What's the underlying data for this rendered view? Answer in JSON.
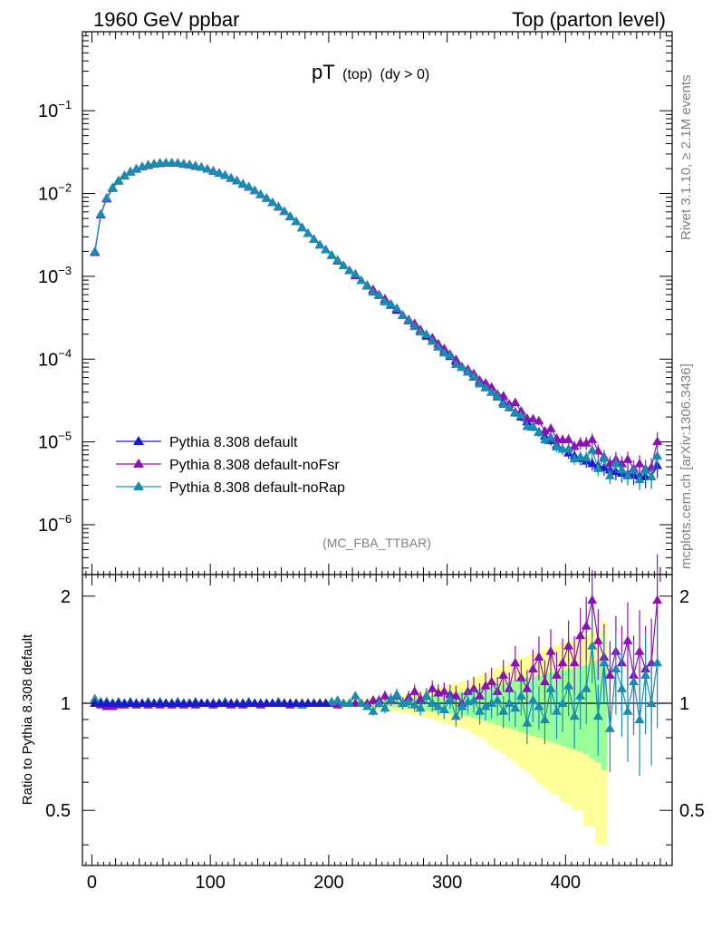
{
  "header": {
    "left": "1960 GeV ppbar",
    "right": "Top (parton level)"
  },
  "side_labels": {
    "rivet": "Rivet 3.1.10, ≥ 2.1M events",
    "mcplots": "mcplots.cern.ch [arXiv:1306.3436]"
  },
  "plot_title": {
    "main": "pT",
    "sub1": "(top)",
    "sub2": "(dy > 0)"
  },
  "analysis_label": "(MC_FBA_TTBAR)",
  "ratio_ylabel": "Ratio to Pythia 8.308 default",
  "colors": {
    "default": "#1a1acc",
    "noFsr": "#8a12b4",
    "noRap": "#1a8caf",
    "band_yellow": "#ffff99",
    "band_green": "#99ff99"
  },
  "chart_data": [
    {
      "type": "line",
      "title": "pT (top) (dy > 0)",
      "xlabel": "",
      "ylabel": "",
      "xlim": [
        -8,
        490
      ],
      "yscale": "log",
      "ylim": [
        2.5e-07,
        0.9
      ],
      "yticks": [
        {
          "value": 1e-06,
          "base": "10",
          "exp": "−6"
        },
        {
          "value": 1e-05,
          "base": "10",
          "exp": "−5"
        },
        {
          "value": 0.0001,
          "base": "10",
          "exp": "−4"
        },
        {
          "value": 0.001,
          "base": "10",
          "exp": "−3"
        },
        {
          "value": 0.01,
          "base": "10",
          "exp": "−2"
        },
        {
          "value": 0.1,
          "base": "10",
          "exp": "−1"
        }
      ],
      "legend": {
        "position": "bottom-left",
        "entries": [
          "Pythia 8.308 default",
          "Pythia 8.308 default-noFsr",
          "Pythia 8.308 default-noRap"
        ]
      },
      "series": [
        {
          "name": "Pythia 8.308 default",
          "color": "#1a1acc",
          "x_start": 2.5,
          "x_step": 5,
          "values": [
            0.00195,
            0.0056,
            0.0088,
            0.0118,
            0.0143,
            0.0165,
            0.0183,
            0.0199,
            0.0211,
            0.0221,
            0.0228,
            0.0233,
            0.0235,
            0.0235,
            0.0233,
            0.0229,
            0.0223,
            0.0216,
            0.0208,
            0.0198,
            0.0188,
            0.0177,
            0.0166,
            0.0154,
            0.0143,
            0.0131,
            0.012,
            0.0109,
            0.0098,
            0.0088,
            0.0078,
            0.0069,
            0.0061,
            0.0053,
            0.0046,
            0.0039,
            0.0033,
            0.0028,
            0.0024,
            0.0021,
            0.0018,
            0.00155,
            0.00135,
            0.00118,
            0.00102,
            0.00089,
            0.00078,
            0.00068,
            0.00059,
            0.00051,
            0.00045,
            0.00039,
            0.00034,
            0.00029,
            0.00025,
            0.00022,
            0.00019,
            0.000165,
            0.000143,
            0.000124,
            0.000108,
            9.4e-05,
            8.1e-05,
            7e-05,
            6.1e-05,
            5.3e-05,
            4.6e-05,
            4e-05,
            3.5e-05,
            3e-05,
            2.6e-05,
            2.3e-05,
            2e-05,
            1.75e-05,
            1.52e-05,
            1.33e-05,
            1.18e-05,
            1.04e-05,
            9.2e-06,
            8.2e-06,
            7.4e-06,
            6.8e-06,
            6.3e-06,
            5.9e-06,
            5.5e-06,
            5.2e-06,
            4.9e-06,
            4.6e-06,
            4.4e-06,
            4.2e-06,
            4.1e-06,
            4e-06,
            3.9e-06,
            3.8e-06,
            3.8e-06,
            5.2e-06
          ]
        }
      ]
    },
    {
      "type": "line",
      "title": "",
      "xlabel": "",
      "ylabel": "Ratio to Pythia 8.308 default",
      "xlim": [
        -8,
        490
      ],
      "ylim": [
        0.35,
        2.3
      ],
      "xticks": [
        0,
        100,
        200,
        300,
        400
      ],
      "yticks": [
        0.5,
        1,
        2
      ],
      "series": [
        {
          "name": "Pythia 8.308 default-noFsr",
          "color": "#8a12b4",
          "x_start": 2.5,
          "x_step": 5,
          "values": [
            1.0,
            0.99,
            0.98,
            0.98,
            0.99,
            0.99,
            1.0,
            0.99,
            1.0,
            0.99,
            1.0,
            0.99,
            1.0,
            0.99,
            1.0,
            0.99,
            1.0,
            0.99,
            1.0,
            1.0,
            0.99,
            1.0,
            1.0,
            0.99,
            1.0,
            0.99,
            1.0,
            1.0,
            0.99,
            1.0,
            1.0,
            1.0,
            1.0,
            0.99,
            1.0,
            0.99,
            1.0,
            1.0,
            1.0,
            1.0,
            1.0,
            0.99,
            1.0,
            1.0,
            1.0,
            1.0,
            1.0,
            1.02,
            1.02,
            1.05,
            1.02,
            1.05,
            1.0,
            1.04,
            1.08,
            1.03,
            1.05,
            1.1,
            1.07,
            1.08,
            1.06,
            1.05,
            1.0,
            1.08,
            1.1,
            1.05,
            1.12,
            1.15,
            1.08,
            1.2,
            1.1,
            1.3,
            1.18,
            1.1,
            1.25,
            1.35,
            1.15,
            1.4,
            1.2,
            1.3,
            1.45,
            1.3,
            1.55,
            1.65,
            1.95,
            1.5,
            1.35,
            1.2,
            1.4,
            1.3,
            1.5,
            1.2,
            1.4,
            1.25,
            1.3,
            1.95
          ]
        },
        {
          "name": "Pythia 8.308 default-noRap",
          "color": "#1a8caf",
          "x_start": 2.5,
          "x_step": 5,
          "values": [
            1.03,
            1.01,
            1.01,
            1.0,
            1.01,
            1.0,
            1.01,
            1.0,
            1.0,
            1.01,
            1.0,
            1.01,
            1.0,
            1.0,
            1.01,
            1.0,
            1.0,
            1.01,
            1.0,
            1.0,
            1.0,
            1.0,
            1.01,
            1.0,
            1.0,
            1.0,
            1.01,
            1.0,
            1.0,
            1.0,
            1.0,
            1.01,
            1.0,
            1.0,
            1.0,
            0.99,
            1.0,
            1.0,
            1.0,
            1.0,
            1.01,
            1.02,
            1.0,
            1.0,
            1.05,
            1.0,
            0.98,
            0.95,
            1.0,
            0.97,
            1.03,
            1.06,
            1.0,
            1.01,
            0.99,
            0.97,
            1.05,
            1.0,
            0.98,
            0.96,
            1.03,
            0.92,
            0.98,
            1.01,
            1.02,
            0.95,
            0.98,
            1.0,
            1.02,
            0.95,
            1.0,
            0.97,
            1.05,
            0.88,
            1.02,
            0.98,
            0.9,
            1.1,
            0.95,
            1.0,
            1.12,
            0.92,
            1.05,
            1.1,
            1.45,
            0.92,
            1.3,
            0.85,
            1.25,
            1.1,
            0.95,
            1.15,
            0.9,
            1.2,
            1.0,
            1.3
          ]
        }
      ],
      "bands": [
        {
          "name": "yellow",
          "color": "#ffff99",
          "x_start": 0,
          "x_step": 5,
          "lower": [
            0.98,
            0.985,
            0.985,
            0.985,
            0.985,
            0.985,
            0.985,
            0.985,
            0.985,
            0.985,
            0.985,
            0.985,
            0.985,
            0.985,
            0.985,
            0.985,
            0.985,
            0.985,
            0.985,
            0.985,
            0.985,
            0.985,
            0.985,
            0.985,
            0.985,
            0.985,
            0.985,
            0.985,
            0.985,
            0.985,
            0.985,
            0.985,
            0.985,
            0.985,
            0.985,
            0.985,
            0.985,
            0.985,
            0.985,
            0.985,
            0.985,
            0.983,
            0.98,
            0.978,
            0.975,
            0.972,
            0.97,
            0.965,
            0.96,
            0.955,
            0.95,
            0.945,
            0.94,
            0.935,
            0.93,
            0.92,
            0.91,
            0.9,
            0.89,
            0.88,
            0.87,
            0.86,
            0.85,
            0.84,
            0.82,
            0.8,
            0.78,
            0.76,
            0.74,
            0.72,
            0.7,
            0.68,
            0.66,
            0.64,
            0.62,
            0.6,
            0.58,
            0.56,
            0.55,
            0.53,
            0.52,
            0.5,
            0.5,
            0.45,
            0.45,
            0.4,
            0.4
          ],
          "upper": [
            1.02,
            1.015,
            1.015,
            1.015,
            1.015,
            1.015,
            1.015,
            1.015,
            1.015,
            1.015,
            1.015,
            1.015,
            1.015,
            1.015,
            1.015,
            1.015,
            1.015,
            1.015,
            1.015,
            1.015,
            1.015,
            1.015,
            1.015,
            1.015,
            1.015,
            1.015,
            1.015,
            1.015,
            1.015,
            1.015,
            1.015,
            1.015,
            1.015,
            1.015,
            1.015,
            1.015,
            1.015,
            1.015,
            1.015,
            1.015,
            1.015,
            1.017,
            1.02,
            1.022,
            1.025,
            1.028,
            1.03,
            1.035,
            1.04,
            1.045,
            1.05,
            1.055,
            1.06,
            1.065,
            1.07,
            1.08,
            1.09,
            1.1,
            1.11,
            1.12,
            1.13,
            1.14,
            1.15,
            1.16,
            1.18,
            1.2,
            1.22,
            1.24,
            1.26,
            1.28,
            1.3,
            1.32,
            1.34,
            1.36,
            1.38,
            1.4,
            1.42,
            1.44,
            1.46,
            1.48,
            1.5,
            1.5,
            1.55,
            1.55,
            1.6,
            1.6,
            1.7
          ]
        },
        {
          "name": "green",
          "color": "#99ff99",
          "x_start": 0,
          "x_step": 5,
          "lower": [
            0.99,
            0.993,
            0.993,
            0.993,
            0.993,
            0.993,
            0.993,
            0.993,
            0.993,
            0.993,
            0.993,
            0.993,
            0.993,
            0.993,
            0.993,
            0.993,
            0.993,
            0.993,
            0.993,
            0.993,
            0.993,
            0.993,
            0.993,
            0.993,
            0.993,
            0.993,
            0.993,
            0.993,
            0.993,
            0.993,
            0.993,
            0.993,
            0.993,
            0.993,
            0.993,
            0.993,
            0.993,
            0.993,
            0.993,
            0.993,
            0.993,
            0.992,
            0.99,
            0.989,
            0.988,
            0.986,
            0.985,
            0.982,
            0.98,
            0.977,
            0.975,
            0.972,
            0.97,
            0.967,
            0.965,
            0.96,
            0.955,
            0.95,
            0.945,
            0.94,
            0.935,
            0.93,
            0.925,
            0.92,
            0.91,
            0.9,
            0.89,
            0.88,
            0.87,
            0.86,
            0.85,
            0.84,
            0.83,
            0.82,
            0.81,
            0.8,
            0.79,
            0.78,
            0.77,
            0.76,
            0.75,
            0.74,
            0.73,
            0.72,
            0.7,
            0.68,
            0.65
          ],
          "upper": [
            1.01,
            1.007,
            1.007,
            1.007,
            1.007,
            1.007,
            1.007,
            1.007,
            1.007,
            1.007,
            1.007,
            1.007,
            1.007,
            1.007,
            1.007,
            1.007,
            1.007,
            1.007,
            1.007,
            1.007,
            1.007,
            1.007,
            1.007,
            1.007,
            1.007,
            1.007,
            1.007,
            1.007,
            1.007,
            1.007,
            1.007,
            1.007,
            1.007,
            1.007,
            1.007,
            1.007,
            1.007,
            1.007,
            1.007,
            1.007,
            1.007,
            1.008,
            1.01,
            1.011,
            1.012,
            1.014,
            1.015,
            1.018,
            1.02,
            1.023,
            1.025,
            1.028,
            1.03,
            1.033,
            1.035,
            1.04,
            1.045,
            1.05,
            1.055,
            1.06,
            1.065,
            1.07,
            1.075,
            1.08,
            1.09,
            1.1,
            1.11,
            1.12,
            1.13,
            1.14,
            1.15,
            1.16,
            1.17,
            1.18,
            1.19,
            1.2,
            1.21,
            1.22,
            1.23,
            1.24,
            1.25,
            1.26,
            1.27,
            1.28,
            1.3,
            1.32,
            1.35
          ]
        }
      ]
    }
  ]
}
